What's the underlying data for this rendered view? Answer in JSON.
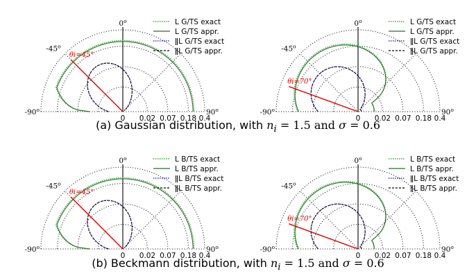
{
  "captions": [
    {
      "label": "(a) Gaussian distribution, with",
      "n_sym": "n",
      "n_sub": "i",
      "eq1": " = 1.5 and ",
      "sigma": "σ",
      "eq2": " = 0.6"
    },
    {
      "label": "(b) Beckmann distribution, with",
      "n_sym": "n",
      "n_sub": "i",
      "eq1": " = 1.5 and ",
      "sigma": "σ",
      "eq2": " = 0.6"
    }
  ],
  "colors": {
    "exact_perp": "#22aa22",
    "appr_perp": "#2e6b2e",
    "exact_par": "#2222cc",
    "appr_par": "#000000",
    "incident": "#e00000",
    "grid": "#000000"
  },
  "chart_data": [
    {
      "id": "a-left",
      "type": "polar",
      "radial_ticks": [
        "0",
        "0.02",
        "0.07",
        "0.18",
        "0.4"
      ],
      "angle_labels": {
        "top": "0",
        "left45": "-45",
        "left": "-90",
        "right": "90"
      },
      "degree_symbol": "o",
      "incident": {
        "label": "θi=45°",
        "angle": -45
      },
      "legend": [
        "L  G/TS exact",
        "L  G/TS appr.",
        "ǁL G/TS exact",
        "ǁL G/TS appr."
      ],
      "series": [
        {
          "name": "L  G/TS exact",
          "style": "exact_perp",
          "curve": "big"
        },
        {
          "name": "L  G/TS appr.",
          "style": "appr_perp",
          "curve": "big"
        },
        {
          "name": "ǁL G/TS exact",
          "style": "exact_par",
          "curve": "small"
        },
        {
          "name": "ǁL G/TS appr.",
          "style": "appr_par",
          "curve": "small"
        }
      ]
    },
    {
      "id": "a-right",
      "type": "polar",
      "radial_ticks": [
        "0",
        "0.02",
        "0.07",
        "0.18",
        "0.4"
      ],
      "angle_labels": {
        "top": "0",
        "left45": "-45",
        "left": "-90",
        "right": "90"
      },
      "degree_symbol": "o",
      "incident": {
        "label": "θi=70°",
        "angle": -70
      },
      "legend": [
        "L  G/TS exact",
        "L  G/TS appr.",
        "ǁL G/TS exact",
        "ǁL G/TS appr."
      ],
      "series": [
        {
          "name": "L  G/TS exact",
          "style": "exact_perp",
          "curve": "big70"
        },
        {
          "name": "L  G/TS appr.",
          "style": "appr_perp",
          "curve": "big70"
        },
        {
          "name": "ǁL G/TS exact",
          "style": "exact_par",
          "curve": "small70"
        },
        {
          "name": "ǁL G/TS appr.",
          "style": "appr_par",
          "curve": "small70"
        }
      ]
    },
    {
      "id": "b-left",
      "type": "polar",
      "radial_ticks": [
        "0",
        "0.02",
        "0.07",
        "0.18",
        "0.4"
      ],
      "angle_labels": {
        "top": "0",
        "left45": "-45",
        "left": "-90",
        "right": "90"
      },
      "degree_symbol": "o",
      "incident": {
        "label": "θi=45°",
        "angle": -45
      },
      "legend": [
        "L  B/TS exact",
        "L  B/TS appr.",
        "ǁL B/TS exact",
        "ǁL B/TS appr."
      ],
      "series": [
        {
          "name": "L  B/TS exact",
          "style": "exact_perp",
          "curve": "big"
        },
        {
          "name": "L  B/TS appr.",
          "style": "appr_perp",
          "curve": "big"
        },
        {
          "name": "ǁL B/TS exact",
          "style": "exact_par",
          "curve": "small"
        },
        {
          "name": "ǁL B/TS appr.",
          "style": "appr_par",
          "curve": "small"
        }
      ]
    },
    {
      "id": "b-right",
      "type": "polar",
      "radial_ticks": [
        "0",
        "0.02",
        "0.07",
        "0.18",
        "0.4"
      ],
      "angle_labels": {
        "top": "0",
        "left45": "-45",
        "left": "-90",
        "right": "90"
      },
      "degree_symbol": "o",
      "incident": {
        "label": "θi=70°",
        "angle": -70
      },
      "legend": [
        "L  B/TS exact",
        "L  B/TS appr.",
        "ǁL B/TS exact",
        "ǁL B/TS appr."
      ],
      "series": [
        {
          "name": "L  B/TS exact",
          "style": "exact_perp",
          "curve": "big70"
        },
        {
          "name": "L  B/TS appr.",
          "style": "appr_perp",
          "curve": "big70"
        },
        {
          "name": "ǁL B/TS exact",
          "style": "exact_par",
          "curve": "small70"
        },
        {
          "name": "ǁL B/TS appr.",
          "style": "appr_par",
          "curve": "small70"
        }
      ]
    }
  ]
}
